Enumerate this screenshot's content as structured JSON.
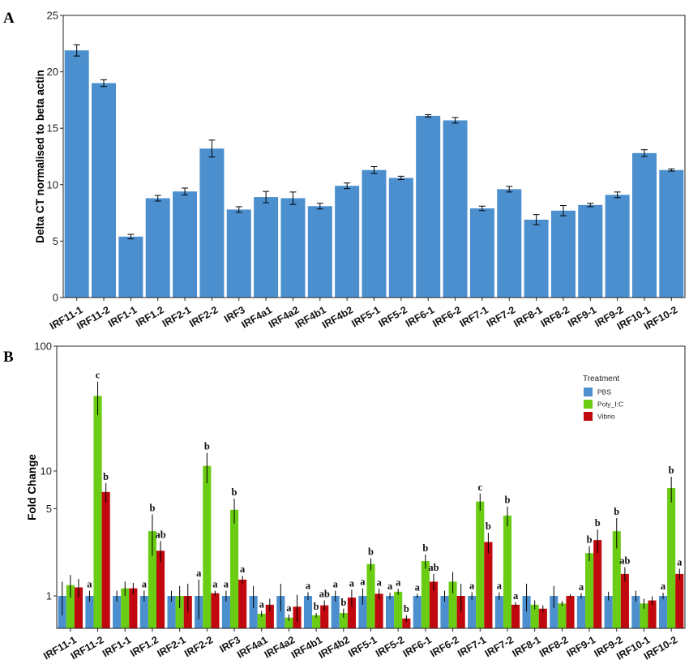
{
  "chart_data": [
    {
      "panel": "A",
      "type": "bar",
      "ylabel": "Delta CT normalised to beta actin",
      "xlabel": "",
      "ylim": [
        0,
        25
      ],
      "yticks": [
        0,
        5,
        10,
        15,
        20,
        25
      ],
      "categories": [
        "IRF11-1",
        "IRF11-2",
        "IRF1-1",
        "IRF1.2",
        "IRF2-1",
        "IRF2-2",
        "IRF3",
        "IRF4a1",
        "IRF4a2",
        "IRF4b1",
        "IRF4b2",
        "IRF5-1",
        "IRF5-2",
        "IRF6-1",
        "IRF6-2",
        "IRF7-1",
        "IRF7-2",
        "IRF8-1",
        "IRF8-2",
        "IRF9-1",
        "IRF9-2",
        "IRF10-1",
        "IRF10-2"
      ],
      "values": [
        21.9,
        19.0,
        5.4,
        8.8,
        9.4,
        13.2,
        7.8,
        8.9,
        8.8,
        8.1,
        9.9,
        11.3,
        10.6,
        16.1,
        15.7,
        7.9,
        9.6,
        6.9,
        7.7,
        8.2,
        9.1,
        12.8,
        11.3
      ],
      "errors": [
        0.5,
        0.3,
        0.2,
        0.25,
        0.3,
        0.75,
        0.25,
        0.5,
        0.55,
        0.25,
        0.25,
        0.3,
        0.15,
        0.1,
        0.25,
        0.2,
        0.25,
        0.45,
        0.45,
        0.15,
        0.25,
        0.3,
        0.1
      ],
      "color": "#4b8fce",
      "grid": false
    },
    {
      "panel": "B",
      "type": "bar",
      "ylabel": "Fold Change",
      "xlabel": "",
      "yscale": "log",
      "ylim": [
        0.55,
        100
      ],
      "yticks": [
        1,
        5,
        10,
        100
      ],
      "categories": [
        "IRF11-1",
        "IRF11-2",
        "IRF1-1",
        "IRF1.2",
        "IRF2-1",
        "IRF2-2",
        "IRF3",
        "IRF4a1",
        "IRF4a2",
        "IRF4b1",
        "IRF4b2",
        "IRF5-1",
        "IRF5-2",
        "IRF6-1",
        "IRF6-2",
        "IRF7-1",
        "IRF7-2",
        "IRF8-1",
        "IRF8-2",
        "IRF9-1",
        "IRF9-2",
        "IRF10-1",
        "IRF10-2"
      ],
      "legend": {
        "title": "Treatment",
        "position": "top-right"
      },
      "series": [
        {
          "name": "PBS",
          "color": "#4b8fce",
          "values": [
            1,
            1,
            1,
            1,
            1,
            1,
            1,
            1,
            1,
            1,
            1,
            1,
            1,
            1,
            1,
            1,
            1,
            1,
            1,
            1,
            1,
            1,
            1
          ],
          "errors": [
            0.3,
            0.1,
            0.1,
            0.1,
            0.1,
            0.35,
            0.1,
            0.2,
            0.25,
            0.07,
            0.1,
            0.15,
            0.06,
            0.04,
            0.1,
            0.07,
            0.07,
            0.25,
            0.2,
            0.05,
            0.08,
            0.1,
            0.06
          ],
          "labels": [
            "",
            "a",
            "",
            "a",
            "",
            "a",
            "a",
            "",
            "",
            "a",
            "a",
            "a",
            "a",
            "a",
            "",
            "a",
            "a",
            "",
            "",
            "a",
            "",
            "",
            "a"
          ]
        },
        {
          "name": "Poly_I:C",
          "color": "#6bcc14",
          "values": [
            1.22,
            40,
            1.15,
            3.3,
            1.0,
            11.0,
            4.9,
            0.72,
            0.67,
            0.7,
            0.73,
            1.8,
            1.08,
            1.9,
            1.3,
            5.7,
            4.4,
            0.85,
            0.87,
            2.2,
            3.3,
            0.87,
            7.3
          ],
          "errors": [
            0.25,
            12,
            0.15,
            1.2,
            0.2,
            3.0,
            1.1,
            0.04,
            0.04,
            0.03,
            0.06,
            0.2,
            0.06,
            0.25,
            0.25,
            0.9,
            0.8,
            0.07,
            0.04,
            0.3,
            0.9,
            0.08,
            1.7
          ],
          "labels": [
            "",
            "c",
            "",
            "b",
            "",
            "b",
            "b",
            "a",
            "a",
            "b",
            "b",
            "b",
            "a",
            "b",
            "",
            "c",
            "b",
            "",
            "",
            "b",
            "b",
            "",
            "b"
          ]
        },
        {
          "name": "Vibrio",
          "color": "#c0080e",
          "values": [
            1.17,
            6.8,
            1.15,
            2.3,
            1.0,
            1.05,
            1.35,
            0.85,
            0.82,
            0.84,
            0.97,
            1.04,
            0.66,
            1.3,
            1.0,
            2.7,
            0.85,
            0.79,
            1.0,
            2.8,
            1.5,
            0.92,
            1.5
          ],
          "errors": [
            0.2,
            1.2,
            0.12,
            0.45,
            0.25,
            0.05,
            0.1,
            0.1,
            0.2,
            0.08,
            0.15,
            0.1,
            0.04,
            0.2,
            0.25,
            0.5,
            0.04,
            0.05,
            0.03,
            0.6,
            0.2,
            0.07,
            0.15
          ],
          "labels": [
            "",
            "b",
            "",
            "ab",
            "",
            "a",
            "a",
            "",
            "",
            "ab",
            "a",
            "a",
            "b",
            "ab",
            "",
            "b",
            "a",
            "",
            "",
            "b",
            "ab",
            "",
            "a"
          ]
        }
      ],
      "grid": false
    }
  ],
  "panel_letters": [
    "A",
    "B"
  ]
}
